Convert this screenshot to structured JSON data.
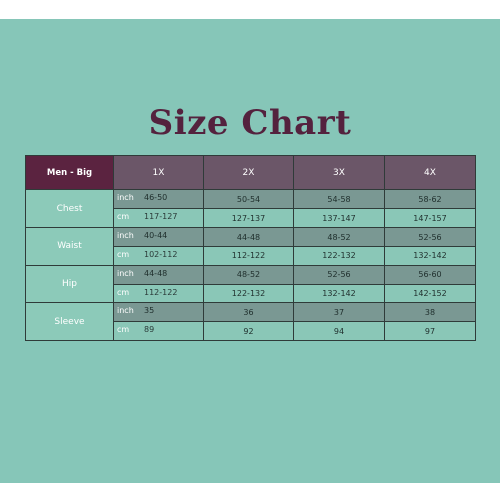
{
  "title": "Size Chart",
  "header": {
    "label": "Men - Big",
    "sizes": [
      "1X",
      "2X",
      "3X",
      "4X"
    ]
  },
  "rows": [
    {
      "measure": "Chest",
      "inch": {
        "unit": "inch",
        "values": [
          "46-50",
          "50-54",
          "54-58",
          "58-62"
        ]
      },
      "cm": {
        "unit": "cm",
        "values": [
          "117-127",
          "127-137",
          "137-147",
          "147-157"
        ]
      }
    },
    {
      "measure": "Waist",
      "inch": {
        "unit": "inch",
        "values": [
          "40-44",
          "44-48",
          "48-52",
          "52-56"
        ]
      },
      "cm": {
        "unit": "cm",
        "values": [
          "102-112",
          "112-122",
          "122-132",
          "132-142"
        ]
      }
    },
    {
      "measure": "Hip",
      "inch": {
        "unit": "inch",
        "values": [
          "44-48",
          "48-52",
          "52-56",
          "56-60"
        ]
      },
      "cm": {
        "unit": "cm",
        "values": [
          "112-122",
          "122-132",
          "132-142",
          "142-152"
        ]
      }
    },
    {
      "measure": "Sleeve",
      "inch": {
        "unit": "inch",
        "values": [
          "35",
          "36",
          "37",
          "38"
        ]
      },
      "cm": {
        "unit": "cm",
        "values": [
          "89",
          "92",
          "94",
          "97"
        ]
      }
    }
  ]
}
